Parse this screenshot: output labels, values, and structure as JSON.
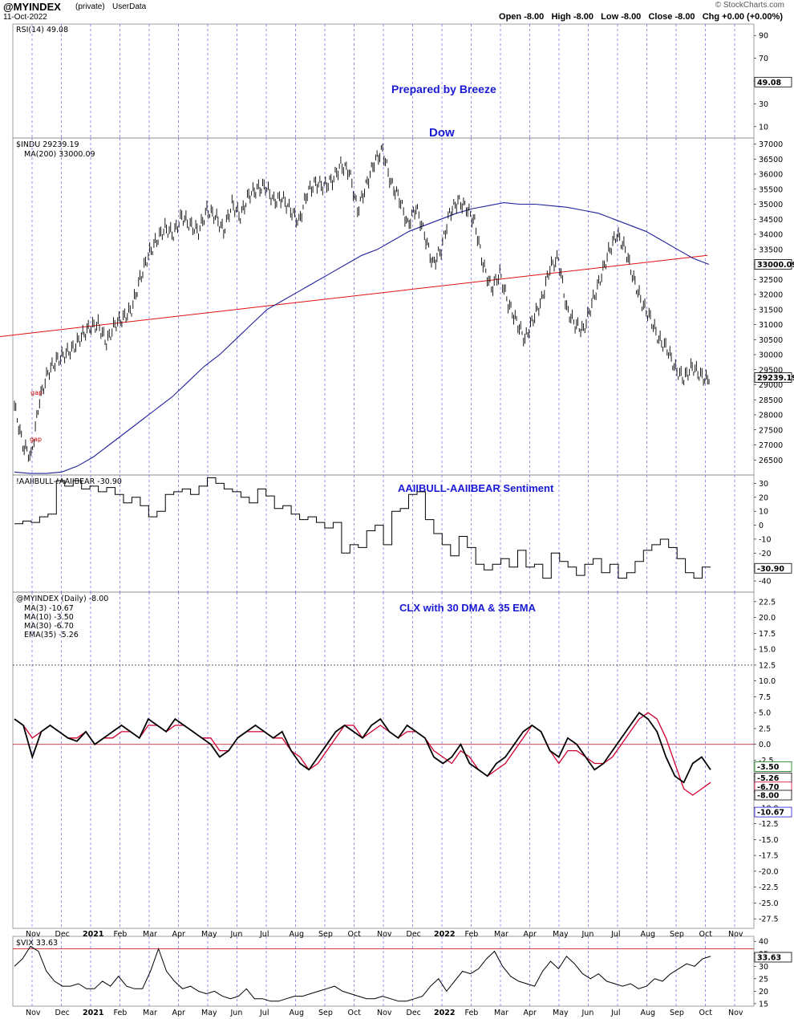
{
  "header": {
    "symbol": "@MYINDEX",
    "privacy": "(private)",
    "source": "UserData",
    "date": "11-Oct-2022",
    "ohlc": "Open -8.00   High -8.00   Low -8.00   Close -8.00   Chg +0.00 (+0.00%)",
    "watermark": "© StockCharts.com"
  },
  "annotations": {
    "prepared": "Prepared by Breeze",
    "dow": "Dow",
    "sentiment_title": "AAIIBULL-AAIIBEAR Sentiment",
    "clx_title": "CLX with 30 DMA & 35 EMA",
    "gap1": "gap",
    "gap2": "gap"
  },
  "chart_data": [
    {
      "type": "line",
      "name": "rsi-panel",
      "legend": "RSI(14) 49.08",
      "value_tag": "49.08",
      "ylim": [
        0,
        100
      ],
      "ticks": [
        "10",
        "30",
        "50",
        "70",
        "90"
      ]
    },
    {
      "type": "line",
      "name": "dow-panel",
      "legend": "$INDU 29239.19",
      "ma_legend": "MA(200) 33000.09",
      "value_tag": "29239.19",
      "ma_tag": "33000.09",
      "ylim": [
        26000,
        37200
      ],
      "ticks": [
        "26500",
        "27000",
        "27500",
        "28000",
        "28500",
        "29000",
        "29500",
        "30000",
        "30500",
        "31000",
        "31500",
        "32000",
        "32500",
        "33000",
        "33500",
        "34000",
        "34500",
        "35000",
        "35500",
        "36000",
        "36500",
        "37000"
      ],
      "price": [
        28300,
        27000,
        26600,
        28500,
        29400,
        29800,
        30000,
        30200,
        30600,
        30900,
        31000,
        30400,
        31000,
        31200,
        31500,
        32500,
        33300,
        33800,
        34200,
        34000,
        34600,
        34300,
        34100,
        34800,
        34600,
        34100,
        35000,
        34600,
        35300,
        35500,
        35600,
        35100,
        35200,
        34800,
        34400,
        35400,
        35700,
        35600,
        35800,
        36300,
        36100,
        34800,
        35600,
        36400,
        36800,
        35700,
        35200,
        34300,
        34900,
        34000,
        33000,
        33500,
        34700,
        35100,
        34900,
        34400,
        33000,
        32200,
        32700,
        31700,
        31100,
        30500,
        31200,
        31800,
        32900,
        33200,
        31500,
        31000,
        30800,
        31700,
        32500,
        33400,
        34000,
        33500,
        32500,
        31700,
        31200,
        30500,
        30200,
        29500,
        29200,
        29600,
        29300,
        29100
      ],
      "ma200": [
        26100,
        26050,
        26050,
        26100,
        26300,
        26600,
        27000,
        27400,
        27800,
        28200,
        28600,
        29100,
        29600,
        30000,
        30500,
        31000,
        31500,
        31800,
        32100,
        32400,
        32700,
        33000,
        33300,
        33500,
        33800,
        34100,
        34300,
        34500,
        34700,
        34850,
        34950,
        35050,
        35000,
        35000,
        34950,
        34900,
        34800,
        34700,
        34500,
        34300,
        34100,
        33800,
        33500,
        33200,
        33000
      ],
      "trendline": [
        [
          0,
          30600
        ],
        [
          1,
          33300
        ]
      ]
    },
    {
      "type": "line",
      "name": "sentiment-panel",
      "legend": "!AAIIBULL-!AAIIBEAR -30.90",
      "value_tag": "-30.90",
      "ylim": [
        -48,
        36
      ],
      "ticks": [
        "-40",
        "-30",
        "-20",
        "-10",
        "0",
        "10",
        "20",
        "30"
      ],
      "values": [
        1,
        3,
        2,
        6,
        8,
        32,
        28,
        32,
        26,
        28,
        24,
        27,
        22,
        16,
        20,
        14,
        6,
        10,
        22,
        24,
        26,
        22,
        28,
        34,
        30,
        26,
        24,
        20,
        16,
        26,
        21,
        12,
        14,
        8,
        4,
        6,
        2,
        -2,
        2,
        -20,
        -14,
        -16,
        -4,
        0,
        -14,
        10,
        12,
        22,
        24,
        4,
        -6,
        -14,
        -22,
        -8,
        -16,
        -28,
        -32,
        -28,
        -24,
        -30,
        -18,
        -30,
        -28,
        -38,
        -20,
        -26,
        -30,
        -36,
        -28,
        -24,
        -34,
        -28,
        -38,
        -34,
        -26,
        -18,
        -14,
        -10,
        -16,
        -24,
        -34,
        -38,
        -30,
        -30
      ],
      "step": true
    },
    {
      "type": "line",
      "name": "clx-panel",
      "legend": "@MYINDEX (Daily) -8.00",
      "ma_legends": [
        "MA(3) -10.67",
        "MA(10) -3.50",
        "MA(30) -6.70",
        "EMA(35) -5.26"
      ],
      "value_tags": [
        "-3.50",
        "-5.26",
        "-6.70",
        "-8.00",
        "-10.67"
      ],
      "ylim": [
        -29,
        24
      ],
      "ticks": [
        "-27.5",
        "-25.0",
        "-22.5",
        "-20.0",
        "-17.5",
        "-15.0",
        "-12.5",
        "-10.0",
        "-7.5",
        "-5.0",
        "-2.5",
        "0.0",
        "2.5",
        "5.0",
        "7.5",
        "10.0",
        "12.5",
        "15.0",
        "17.5",
        "20.0",
        "22.5"
      ],
      "zero_line": 0,
      "dashed_level": 12.5,
      "ema35": [
        4,
        3,
        -2,
        2,
        3,
        2,
        1,
        0.5,
        2,
        0,
        1,
        2,
        3,
        2,
        1,
        4,
        3,
        2,
        4,
        3,
        2,
        1,
        0,
        -2,
        -1,
        1,
        2,
        3,
        2,
        1,
        2,
        -1,
        -3,
        -4,
        -2,
        0,
        2,
        3,
        2,
        1,
        3,
        4,
        2,
        1,
        3,
        2,
        1,
        -2,
        -3,
        -2,
        0,
        -3,
        -4,
        -5,
        -3,
        -2,
        0,
        2,
        3,
        2,
        -1,
        -2,
        1,
        0,
        -2,
        -4,
        -3,
        -1,
        1,
        3,
        5,
        4,
        2,
        -2,
        -5,
        -6,
        -3,
        -2,
        -4
      ],
      "ma30": [
        4,
        3,
        1,
        2,
        3,
        2,
        1,
        1,
        2,
        0,
        1,
        1,
        2,
        2,
        1,
        3,
        3,
        2,
        3,
        3,
        2,
        1,
        1,
        -1,
        -1,
        1,
        2,
        2,
        2,
        1,
        1,
        -1,
        -2,
        -4,
        -3,
        -1,
        1,
        3,
        3,
        1,
        2,
        3,
        2,
        1,
        2,
        2,
        1,
        -1,
        -2,
        -3,
        -1,
        -2,
        -4,
        -5,
        -4,
        -3,
        -1,
        1,
        3,
        2,
        -1,
        -3,
        -1,
        -1,
        -2,
        -3,
        -3,
        -2,
        0,
        2,
        4,
        5,
        4,
        1,
        -3,
        -7,
        -8,
        -7,
        -6
      ]
    },
    {
      "type": "line",
      "name": "vix-panel",
      "legend": "$VIX 33.63",
      "value_tag": "33.63",
      "ylim": [
        14,
        42
      ],
      "ticks": [
        "15",
        "20",
        "25",
        "30",
        "35",
        "40"
      ],
      "ref_level": 37,
      "values": [
        30,
        33,
        38,
        36,
        28,
        24,
        22,
        22,
        23,
        21,
        21,
        24,
        22,
        26,
        22,
        21,
        21,
        28,
        37,
        28,
        24,
        21,
        22,
        20,
        19,
        20,
        18,
        17,
        18,
        21,
        17,
        17,
        16,
        16,
        17,
        18,
        18,
        19,
        20,
        21,
        22,
        20,
        19,
        18,
        17,
        17,
        18,
        17,
        16,
        16,
        17,
        18,
        22,
        25,
        20,
        24,
        28,
        27,
        29,
        33,
        36,
        30,
        26,
        24,
        23,
        22,
        28,
        32,
        29,
        34,
        31,
        27,
        25,
        27,
        24,
        23,
        22,
        23,
        21,
        22,
        25,
        24,
        27,
        29,
        31,
        30,
        33,
        34
      ]
    }
  ],
  "x_axis": {
    "months": [
      "Nov",
      "Dec",
      "2021",
      "Feb",
      "Mar",
      "Apr",
      "May",
      "Jun",
      "Jul",
      "Aug",
      "Sep",
      "Oct",
      "Nov",
      "Dec",
      "2022",
      "Feb",
      "Mar",
      "Apr",
      "May",
      "Jun",
      "Jul",
      "Aug",
      "Sep",
      "Oct",
      "Nov"
    ],
    "bold": [
      "2021",
      "2022"
    ]
  },
  "colors": {
    "grid_dashed": "#4a4ae0",
    "ma200": "#22229a",
    "trendline": "#e01010",
    "ma30": "#d00030",
    "ema": "#000000",
    "title_blue": "#1a1ad6"
  }
}
